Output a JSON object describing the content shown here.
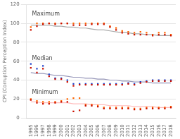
{
  "chart_data": {
    "type": "scatter",
    "ylabel": "CPI (Corruption Perception Index)",
    "x": [
      1995,
      1996,
      1997,
      1998,
      1999,
      2000,
      2001,
      2002,
      2003,
      2004,
      2005,
      2006,
      2007,
      2008,
      2009,
      2010,
      2011,
      2012,
      2013,
      2014,
      2015,
      2016,
      2017,
      2018
    ],
    "series": [
      {
        "type": "line",
        "color": "#aaaaaa",
        "values": [
          98,
          98,
          98,
          98,
          97,
          97,
          96,
          96,
          95,
          95,
          94,
          93,
          93,
          92,
          91,
          90,
          90,
          89,
          89,
          88,
          88,
          87,
          87,
          87
        ]
      },
      {
        "type": "line",
        "color": "#9999bb",
        "values": [
          48,
          47,
          47,
          46,
          45,
          45,
          44,
          43,
          43,
          42,
          42,
          41,
          41,
          40,
          40,
          39,
          39,
          38,
          38,
          38,
          37,
          37,
          37,
          37
        ]
      },
      {
        "type": "line",
        "color": "#ffbbbb",
        "values": [
          17,
          17,
          16,
          16,
          16,
          16,
          16,
          15,
          15,
          15,
          14,
          14,
          14,
          13,
          13,
          13,
          13,
          12,
          12,
          12,
          12,
          11,
          11,
          11
        ]
      },
      {
        "type": "scatter",
        "marker": "square",
        "color": "#ff6600",
        "values": [
          96,
          100,
          100,
          100,
          100,
          100,
          100,
          100,
          100,
          100,
          100,
          100,
          100,
          97,
          95,
          92,
          91,
          90,
          91,
          90,
          88,
          90,
          90,
          88
        ]
      },
      {
        "type": "scatter",
        "marker": "square",
        "color": "#cc1100",
        "values": [
          93,
          97,
          99,
          100,
          99,
          100,
          100,
          98,
          98,
          98,
          99,
          99,
          99,
          96,
          93,
          90,
          89,
          88,
          88,
          88,
          87,
          88,
          88,
          87
        ]
      },
      {
        "type": "scatter",
        "marker": "square",
        "color": "#2244cc",
        "values": [
          57,
          52,
          55,
          46,
          42,
          42,
          40,
          36,
          36,
          36,
          36,
          36,
          36,
          36,
          36,
          36,
          37,
          36,
          38,
          39,
          40,
          40,
          40,
          40
        ]
      },
      {
        "type": "scatter",
        "marker": "square",
        "color": "#cc1100",
        "values": [
          53,
          48,
          52,
          44,
          41,
          41,
          38,
          34,
          35,
          35,
          35,
          35,
          35,
          35,
          35,
          35,
          36,
          35,
          37,
          38,
          39,
          39,
          39,
          39
        ]
      },
      {
        "type": "scatter",
        "marker": "square",
        "color": "#ff6600",
        "values": [
          20,
          18,
          17,
          17,
          17,
          18,
          20,
          21,
          21,
          14,
          14,
          13,
          11,
          11,
          11,
          11,
          11,
          10,
          10,
          11,
          11,
          11,
          11,
          12
        ]
      },
      {
        "type": "scatter",
        "marker": "square",
        "color": "#cc1100",
        "values": [
          19,
          16,
          15,
          15,
          16,
          17,
          17,
          7,
          8,
          13,
          13,
          12,
          10,
          10,
          10,
          10,
          10,
          9,
          9,
          10,
          10,
          10,
          10,
          11
        ]
      }
    ],
    "annotations": [
      {
        "text": "Maximum",
        "x": 1995.2,
        "y": 107,
        "color": "#444444"
      },
      {
        "text": "Median",
        "x": 1995.2,
        "y": 60,
        "color": "#444444"
      },
      {
        "text": "Minimum",
        "x": 1995.2,
        "y": 24,
        "color": "#444444"
      }
    ],
    "xlim": [
      1994.3,
      2018.8
    ],
    "xticks": [
      1995,
      1996,
      1997,
      1998,
      1999,
      2000,
      2001,
      2002,
      2003,
      2004,
      2005,
      2006,
      2007,
      2008,
      2009,
      2010,
      2011,
      2012,
      2013,
      2014,
      2015,
      2016,
      2017,
      2018
    ],
    "ylim": [
      0,
      120
    ],
    "yticks": [
      0,
      20,
      40,
      60,
      80,
      100,
      120
    ],
    "grid": "y"
  }
}
